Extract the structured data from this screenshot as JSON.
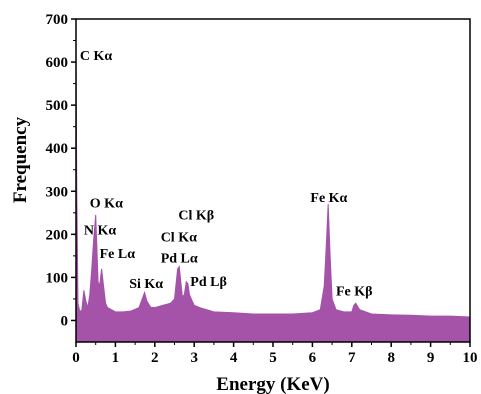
{
  "chart_data": {
    "type": "area",
    "title": "",
    "xlabel": "Energy (KeV)",
    "ylabel": "Frequency",
    "xlim": [
      0,
      10
    ],
    "ylim": [
      -50,
      700
    ],
    "xticks": [
      0,
      1,
      2,
      3,
      4,
      5,
      6,
      7,
      8,
      9,
      10
    ],
    "yticks": [
      0,
      100,
      200,
      300,
      400,
      500,
      600,
      700
    ],
    "grid": false,
    "fill_color": "#a453a8",
    "series": [
      {
        "name": "",
        "x": [
          0.0,
          0.02,
          0.05,
          0.1,
          0.15,
          0.2,
          0.25,
          0.3,
          0.35,
          0.4,
          0.45,
          0.5,
          0.53,
          0.56,
          0.6,
          0.65,
          0.7,
          0.75,
          0.8,
          0.9,
          1.0,
          1.2,
          1.4,
          1.6,
          1.7,
          1.74,
          1.8,
          1.9,
          2.0,
          2.2,
          2.4,
          2.5,
          2.58,
          2.62,
          2.66,
          2.7,
          2.75,
          2.8,
          2.84,
          2.88,
          2.95,
          3.0,
          3.2,
          3.5,
          4.0,
          4.5,
          5.0,
          5.5,
          6.0,
          6.2,
          6.3,
          6.35,
          6.4,
          6.45,
          6.5,
          6.6,
          6.8,
          7.0,
          7.05,
          7.1,
          7.2,
          7.5,
          8.0,
          8.5,
          9.0,
          9.5,
          10.0
        ],
        "values": [
          620,
          300,
          40,
          20,
          25,
          70,
          45,
          30,
          60,
          120,
          190,
          245,
          170,
          90,
          80,
          120,
          80,
          40,
          30,
          25,
          20,
          20,
          22,
          30,
          55,
          65,
          45,
          30,
          30,
          35,
          40,
          50,
          120,
          125,
          90,
          55,
          60,
          90,
          85,
          60,
          45,
          35,
          28,
          20,
          18,
          15,
          15,
          15,
          18,
          25,
          80,
          170,
          270,
          150,
          50,
          25,
          20,
          20,
          35,
          40,
          25,
          15,
          13,
          12,
          10,
          10,
          8
        ]
      }
    ],
    "annotations": [
      {
        "text": "C Kα",
        "x": 0.1,
        "y": 605
      },
      {
        "text": "O Kα",
        "x": 0.35,
        "y": 262
      },
      {
        "text": "N Kα",
        "x": 0.2,
        "y": 200
      },
      {
        "text": "Fe Lα",
        "x": 0.6,
        "y": 145
      },
      {
        "text": "Si Kα",
        "x": 1.35,
        "y": 75
      },
      {
        "text": "Cl Kβ",
        "x": 2.6,
        "y": 235
      },
      {
        "text": "Cl Kα",
        "x": 2.15,
        "y": 183
      },
      {
        "text": "Pd Lα",
        "x": 2.15,
        "y": 135
      },
      {
        "text": "Pd Lβ",
        "x": 2.9,
        "y": 80
      },
      {
        "text": "Fe Kα",
        "x": 5.95,
        "y": 275
      },
      {
        "text": "Fe Kβ",
        "x": 6.6,
        "y": 58
      }
    ]
  }
}
